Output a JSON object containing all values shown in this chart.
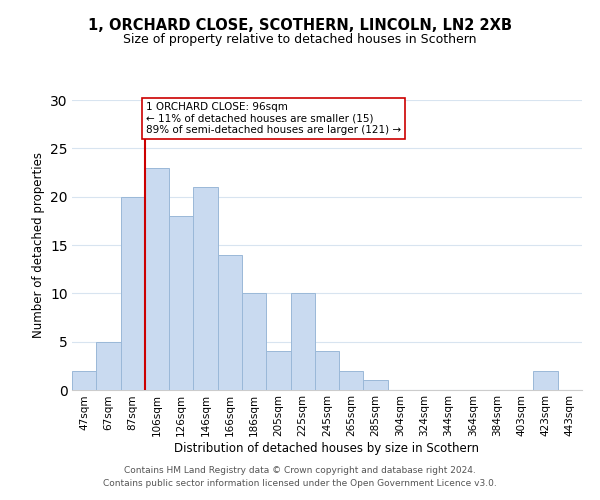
{
  "title": "1, ORCHARD CLOSE, SCOTHERN, LINCOLN, LN2 2XB",
  "subtitle": "Size of property relative to detached houses in Scothern",
  "xlabel": "Distribution of detached houses by size in Scothern",
  "ylabel": "Number of detached properties",
  "footer_line1": "Contains HM Land Registry data © Crown copyright and database right 2024.",
  "footer_line2": "Contains public sector information licensed under the Open Government Licence v3.0.",
  "bin_labels": [
    "47sqm",
    "67sqm",
    "87sqm",
    "106sqm",
    "126sqm",
    "146sqm",
    "166sqm",
    "186sqm",
    "205sqm",
    "225sqm",
    "245sqm",
    "265sqm",
    "285sqm",
    "304sqm",
    "324sqm",
    "344sqm",
    "364sqm",
    "384sqm",
    "403sqm",
    "423sqm",
    "443sqm"
  ],
  "bar_heights": [
    2,
    5,
    20,
    23,
    18,
    21,
    14,
    10,
    4,
    10,
    4,
    2,
    1,
    0,
    0,
    0,
    0,
    0,
    0,
    2,
    0
  ],
  "bar_color": "#c9daf0",
  "bar_edge_color": "#9ab8d8",
  "vline_color": "#cc0000",
  "vline_x_index": 2,
  "ylim": [
    0,
    30
  ],
  "yticks": [
    0,
    5,
    10,
    15,
    20,
    25,
    30
  ],
  "annotation_title": "1 ORCHARD CLOSE: 96sqm",
  "annotation_line1": "← 11% of detached houses are smaller (15)",
  "annotation_line2": "89% of semi-detached houses are larger (121) →",
  "annotation_box_facecolor": "#ffffff",
  "annotation_box_edgecolor": "#cc0000",
  "grid_color": "#d8e4f0",
  "background_color": "#ffffff"
}
